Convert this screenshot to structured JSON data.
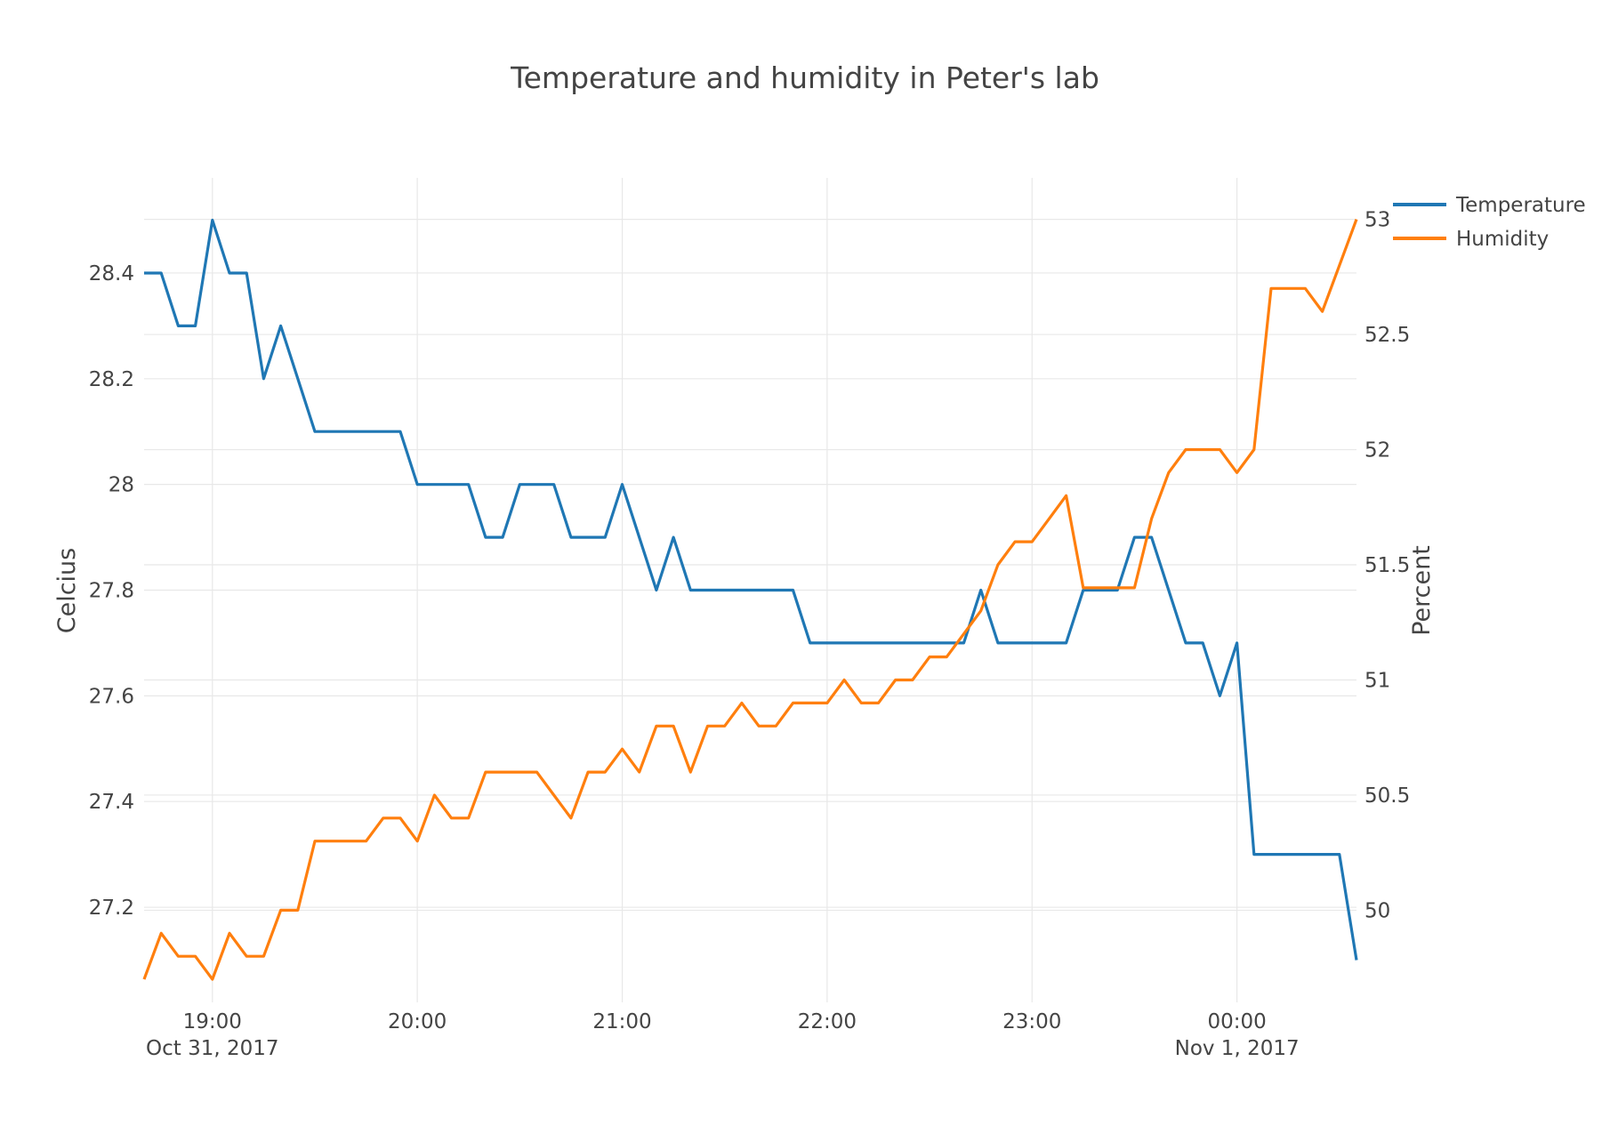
{
  "chart_data": {
    "type": "line",
    "title": "Temperature and humidity in Peter's lab",
    "xlabel": "",
    "ylabel": "Celcius",
    "y2label": "Percent",
    "x": [
      "18:40",
      "18:45",
      "18:50",
      "18:55",
      "19:00",
      "19:05",
      "19:10",
      "19:15",
      "19:20",
      "19:25",
      "19:30",
      "19:35",
      "19:40",
      "19:45",
      "19:50",
      "19:55",
      "20:00",
      "20:05",
      "20:10",
      "20:15",
      "20:20",
      "20:25",
      "20:30",
      "20:35",
      "20:40",
      "20:45",
      "20:50",
      "20:55",
      "21:00",
      "21:05",
      "21:10",
      "21:15",
      "21:20",
      "21:25",
      "21:30",
      "21:35",
      "21:40",
      "21:45",
      "21:50",
      "21:55",
      "22:00",
      "22:05",
      "22:10",
      "22:15",
      "22:20",
      "22:25",
      "22:30",
      "22:35",
      "22:40",
      "22:45",
      "22:50",
      "22:55",
      "23:00",
      "23:05",
      "23:10",
      "23:15",
      "23:20",
      "23:25",
      "23:30",
      "23:35",
      "23:40",
      "23:45",
      "23:50",
      "23:55",
      "00:00",
      "00:05",
      "00:10",
      "00:15",
      "00:20",
      "00:25",
      "00:30",
      "00:35"
    ],
    "x_ticks": [
      {
        "time": "19:00",
        "label": "19:00",
        "date": "Oct 31, 2017"
      },
      {
        "time": "20:00",
        "label": "20:00",
        "date": ""
      },
      {
        "time": "21:00",
        "label": "21:00",
        "date": ""
      },
      {
        "time": "22:00",
        "label": "22:00",
        "date": ""
      },
      {
        "time": "23:00",
        "label": "23:00",
        "date": ""
      },
      {
        "time": "00:00",
        "label": "00:00",
        "date": "Nov 1, 2017"
      }
    ],
    "x_range": [
      "18:40",
      "00:35"
    ],
    "ylim": [
      27.02,
      28.58
    ],
    "y2lim": [
      49.6,
      53.18
    ],
    "y_ticks": [
      {
        "value": 27.2,
        "label": "27.2"
      },
      {
        "value": 27.4,
        "label": "27.4"
      },
      {
        "value": 27.6,
        "label": "27.6"
      },
      {
        "value": 27.8,
        "label": "27.8"
      },
      {
        "value": 28.0,
        "label": "28"
      },
      {
        "value": 28.2,
        "label": "28.2"
      },
      {
        "value": 28.4,
        "label": "28.4"
      }
    ],
    "y2_ticks": [
      {
        "value": 50,
        "label": "50"
      },
      {
        "value": 50.5,
        "label": "50.5"
      },
      {
        "value": 51,
        "label": "51"
      },
      {
        "value": 51.5,
        "label": "51.5"
      },
      {
        "value": 52,
        "label": "52"
      },
      {
        "value": 52.5,
        "label": "52.5"
      },
      {
        "value": 53,
        "label": "53"
      }
    ],
    "grid": true,
    "legend_position": "top-right",
    "series": [
      {
        "name": "Temperature",
        "axis": "left",
        "color": "#1f77b4",
        "values": [
          28.4,
          28.4,
          28.3,
          28.3,
          28.5,
          28.4,
          28.4,
          28.2,
          28.3,
          28.2,
          28.1,
          28.1,
          28.1,
          28.1,
          28.1,
          28.1,
          28.0,
          28.0,
          28.0,
          28.0,
          27.9,
          27.9,
          28.0,
          28.0,
          28.0,
          27.9,
          27.9,
          27.9,
          28.0,
          27.9,
          27.8,
          27.9,
          27.8,
          27.8,
          27.8,
          27.8,
          27.8,
          27.8,
          27.8,
          27.7,
          27.7,
          27.7,
          27.7,
          27.7,
          27.7,
          27.7,
          27.7,
          27.7,
          27.7,
          27.8,
          27.7,
          27.7,
          27.7,
          27.7,
          27.7,
          27.8,
          27.8,
          27.8,
          27.9,
          27.9,
          27.8,
          27.7,
          27.7,
          27.6,
          27.7,
          27.3,
          27.3,
          27.3,
          27.3,
          27.3,
          27.3,
          27.1
        ]
      },
      {
        "name": "Humidity",
        "axis": "right",
        "color": "#ff7f0e",
        "values": [
          49.7,
          49.9,
          49.8,
          49.8,
          49.7,
          49.9,
          49.8,
          49.8,
          50.0,
          50.0,
          50.3,
          50.3,
          50.3,
          50.3,
          50.4,
          50.4,
          50.3,
          50.5,
          50.4,
          50.4,
          50.6,
          50.6,
          50.6,
          50.6,
          50.5,
          50.4,
          50.6,
          50.6,
          50.7,
          50.6,
          50.8,
          50.8,
          50.6,
          50.8,
          50.8,
          50.9,
          50.8,
          50.8,
          50.9,
          50.9,
          50.9,
          51.0,
          50.9,
          50.9,
          51.0,
          51.0,
          51.1,
          51.1,
          51.2,
          51.3,
          51.5,
          51.6,
          51.6,
          51.7,
          51.8,
          51.4,
          51.4,
          51.4,
          51.4,
          51.7,
          51.9,
          52.0,
          52.0,
          52.0,
          51.9,
          52.0,
          52.7,
          52.7,
          52.7,
          52.6,
          52.8,
          53.0
        ]
      }
    ]
  }
}
